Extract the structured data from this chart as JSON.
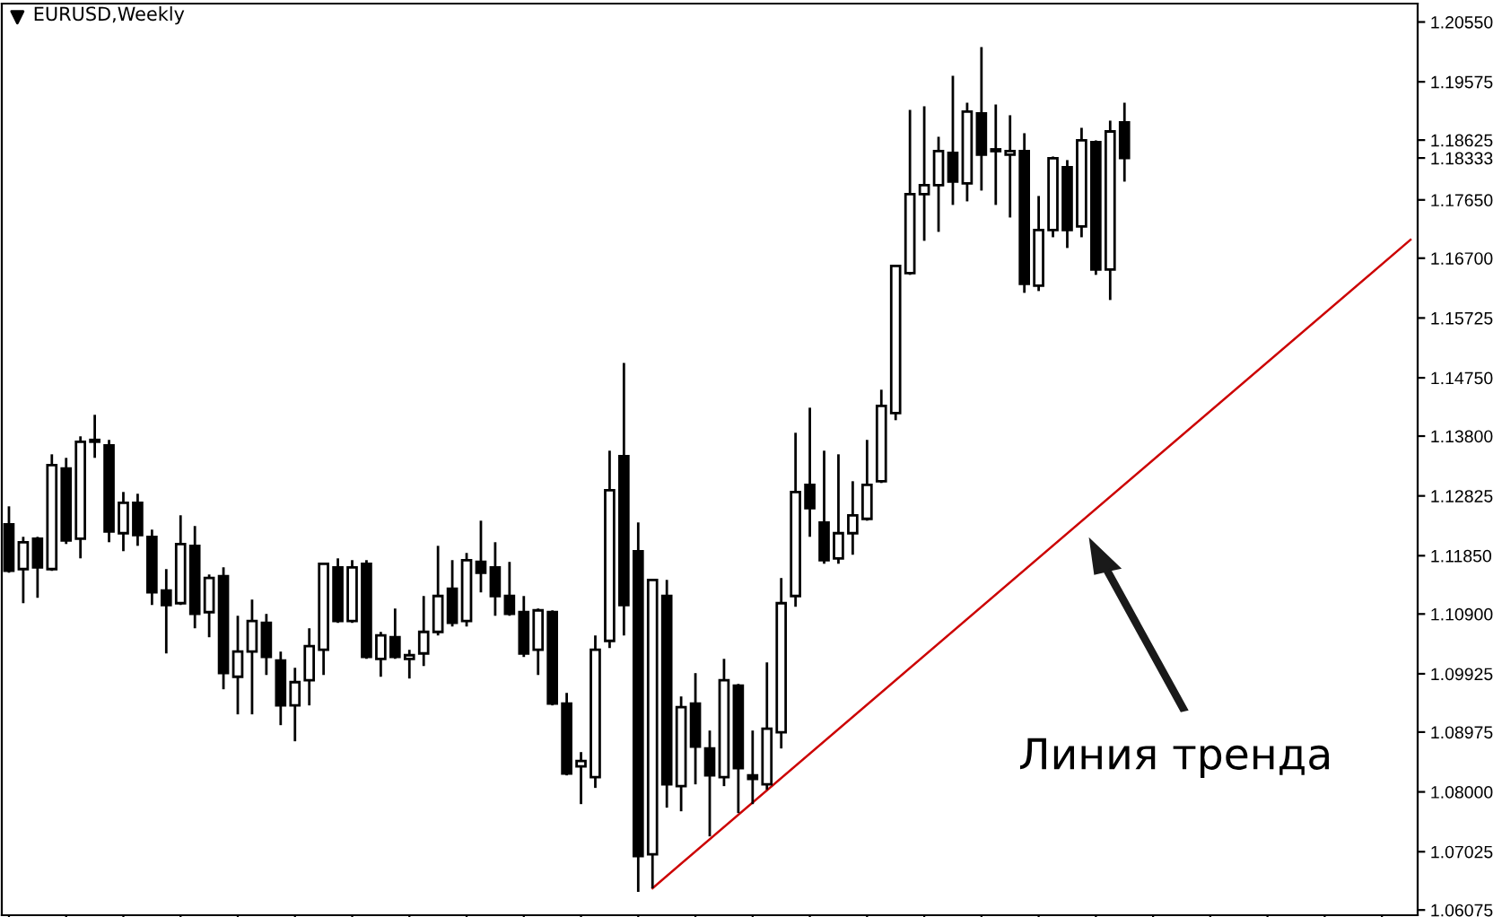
{
  "chart_data": {
    "type": "candlestick",
    "title": "EURUSD,Weekly",
    "color": "#000000",
    "categories": [
      null,
      null,
      null,
      null,
      null,
      null,
      null,
      null,
      null,
      null,
      null,
      null,
      null,
      null,
      null,
      null,
      null,
      null,
      null,
      null,
      null,
      null,
      null,
      null,
      null,
      null,
      null,
      null,
      null,
      null,
      null,
      null,
      null,
      null,
      null,
      null,
      null,
      null,
      null,
      null,
      null,
      null,
      null,
      null,
      null,
      null,
      null,
      null,
      null,
      null,
      null,
      null,
      null,
      null,
      null,
      null,
      null,
      null,
      null,
      null,
      null,
      null,
      null,
      null,
      null,
      null,
      null,
      null,
      null,
      null,
      null,
      null,
      null,
      null,
      null,
      null,
      null,
      null,
      null,
      null,
      null,
      null,
      null,
      null,
      null,
      null,
      null,
      null,
      null,
      null,
      null,
      null,
      null,
      null,
      null,
      null,
      null,
      null,
      null
    ],
    "ohlc": [
      [
        1.12363,
        1.12655,
        1.11573,
        1.11603
      ],
      [
        1.11632,
        1.12158,
        1.11076,
        1.1207
      ],
      [
        1.12129,
        1.12158,
        1.11164,
        1.11661
      ],
      [
        1.11632,
        1.13503,
        1.11603,
        1.13328
      ],
      [
        1.1327,
        1.13445,
        1.12041,
        1.12099
      ],
      [
        1.12129,
        1.13796,
        1.11807,
        1.13708
      ],
      [
        1.13738,
        1.14147,
        1.13445,
        1.13708
      ],
      [
        1.1365,
        1.13738,
        1.1207,
        1.12246
      ],
      [
        1.12217,
        1.12889,
        1.11924,
        1.12714
      ],
      [
        1.12714,
        1.1286,
        1.12011,
        1.12187
      ],
      [
        1.12158,
        1.12275,
        1.11047,
        1.11252
      ],
      [
        1.11281,
        1.11632,
        1.10257,
        1.11047
      ],
      [
        1.11076,
        1.12509,
        1.11047,
        1.12041
      ],
      [
        1.12011,
        1.12334,
        1.10667,
        1.10901
      ],
      [
        1.1093,
        1.11544,
        1.10521,
        1.11486
      ],
      [
        1.11515,
        1.11661,
        1.09673,
        1.09936
      ],
      [
        1.09877,
        1.10871,
        1.09264,
        1.10287
      ],
      [
        1.10287,
        1.11135,
        1.09264,
        1.10784
      ],
      [
        1.10755,
        1.10901,
        1.09906,
        1.10199
      ],
      [
        1.1014,
        1.10287,
        1.09088,
        1.0941
      ],
      [
        1.0941,
        1.10023,
        1.08825,
        1.09789
      ],
      [
        1.09819,
        1.10667,
        1.0941,
        1.10375
      ],
      [
        1.10316,
        1.11719,
        1.09906,
        1.11719
      ],
      [
        1.11661,
        1.11807,
        1.10755,
        1.10784
      ],
      [
        1.10784,
        1.11778,
        1.10755,
        1.11661
      ],
      [
        1.11719,
        1.11778,
        1.10169,
        1.10199
      ],
      [
        1.10169,
        1.10608,
        1.09877,
        1.1055
      ],
      [
        1.10521,
        1.10989,
        1.10169,
        1.10199
      ],
      [
        1.10169,
        1.10316,
        1.09848,
        1.10228
      ],
      [
        1.10257,
        1.11193,
        1.10052,
        1.10608
      ],
      [
        1.10608,
        1.12011,
        1.1055,
        1.11193
      ],
      [
        1.1131,
        1.11778,
        1.10696,
        1.10755
      ],
      [
        1.10784,
        1.11895,
        1.10696,
        1.11778
      ],
      [
        1.11749,
        1.12421,
        1.11252,
        1.11573
      ],
      [
        1.11661,
        1.1207,
        1.10871,
        1.11193
      ],
      [
        1.11193,
        1.11749,
        1.10871,
        1.10901
      ],
      [
        1.1093,
        1.11193,
        1.10199,
        1.10257
      ],
      [
        1.10316,
        1.10989,
        1.09906,
        1.10959
      ],
      [
        1.1093,
        1.10959,
        1.0941,
        1.0944
      ],
      [
        1.0944,
        1.09614,
        1.08269,
        1.08299
      ],
      [
        1.08415,
        1.08649,
        1.07801,
        1.08503
      ],
      [
        1.0824,
        1.1055,
        1.08065,
        1.10316
      ],
      [
        1.10462,
        1.13562,
        1.10345,
        1.12918
      ],
      [
        1.13474,
        1.14994,
        1.1055,
        1.11047
      ],
      [
        1.11924,
        1.12392,
        1.06369,
        1.06953
      ],
      [
        1.06983,
        1.11456,
        1.06427,
        1.11456
      ],
      [
        1.11193,
        1.11456,
        1.07743,
        1.08123
      ],
      [
        1.08094,
        1.09556,
        1.07684,
        1.09381
      ],
      [
        1.0944,
        1.09936,
        1.08123,
        1.08737
      ],
      [
        1.08708,
        1.09,
        1.07275,
        1.08269
      ],
      [
        1.0824,
        1.10169,
        1.08094,
        1.09819
      ],
      [
        1.09731,
        1.0976,
        1.07655,
        1.08386
      ],
      [
        1.08269,
        1.09,
        1.07801,
        1.08211
      ],
      [
        1.08123,
        1.10111,
        1.08035,
        1.0903
      ],
      [
        1.08971,
        1.11486,
        1.08708,
        1.11076
      ],
      [
        1.11193,
        1.13854,
        1.11018,
        1.12889
      ],
      [
        1.13006,
        1.14263,
        1.12158,
        1.12626
      ],
      [
        1.12392,
        1.13562,
        1.11719,
        1.11778
      ],
      [
        1.11807,
        1.13503,
        1.11719,
        1.12217
      ],
      [
        1.12217,
        1.13064,
        1.11866,
        1.12509
      ],
      [
        1.12451,
        1.13738,
        1.12421,
        1.13006
      ],
      [
        1.13064,
        1.14556,
        1.13035,
        1.14293
      ],
      [
        1.14176,
        1.16573,
        1.14059,
        1.16573
      ],
      [
        1.16457,
        1.19117,
        1.16428,
        1.17743
      ],
      [
        1.17743,
        1.19176,
        1.16983,
        1.17889
      ],
      [
        1.17889,
        1.18679,
        1.17129,
        1.18445
      ],
      [
        1.18416,
        1.19673,
        1.17568,
        1.17948
      ],
      [
        1.17919,
        1.19234,
        1.17626,
        1.19088
      ],
      [
        1.19059,
        1.20141,
        1.17802,
        1.18386
      ],
      [
        1.18474,
        1.19205,
        1.17568,
        1.18445
      ],
      [
        1.18386,
        1.1903,
        1.17363,
        1.18445
      ],
      [
        1.18445,
        1.18737,
        1.16135,
        1.16281
      ],
      [
        1.16252,
        1.17714,
        1.16164,
        1.17158
      ],
      [
        1.17158,
        1.18357,
        1.17041,
        1.18328
      ],
      [
        1.18182,
        1.18299,
        1.16866,
        1.17158
      ],
      [
        1.17217,
        1.18825,
        1.17041,
        1.1862
      ],
      [
        1.18591,
        1.1862,
        1.16428,
        1.16515
      ],
      [
        1.16515,
        1.18942,
        1.16018,
        1.18766
      ],
      [
        1.18913,
        1.19234,
        1.17948,
        1.18333
      ],
      null,
      null,
      null,
      null,
      null,
      null,
      null,
      null,
      null,
      null,
      null,
      null,
      null,
      null,
      null,
      null,
      null,
      null,
      null,
      null
    ],
    "series": [
      {
        "type": "line",
        "color": "#cc0000",
        "values": [
          null,
          null,
          null,
          null,
          null,
          null,
          null,
          null,
          null,
          null,
          null,
          null,
          null,
          null,
          null,
          null,
          null,
          null,
          null,
          null,
          null,
          null,
          null,
          null,
          null,
          null,
          null,
          null,
          null,
          null,
          null,
          null,
          null,
          null,
          null,
          null,
          null,
          null,
          null,
          null,
          null,
          null,
          null,
          null,
          null,
          1.0643,
          null,
          null,
          null,
          null,
          null,
          null,
          null,
          null,
          null,
          null,
          null,
          null,
          null,
          null,
          null,
          null,
          null,
          null,
          null,
          null,
          null,
          null,
          null,
          null,
          null,
          null,
          null,
          null,
          null,
          null,
          null,
          null,
          null,
          null,
          null,
          null,
          null,
          null,
          null,
          null,
          null,
          null,
          null,
          null,
          null,
          null,
          null,
          null,
          null,
          null,
          null,
          null,
          1.17
        ]
      }
    ],
    "ylim": [
      1.0599,
      1.2085
    ],
    "yticks": [
      {
        "value": 1.06075,
        "label": "1.06075"
      },
      {
        "value": 1.07025,
        "label": "1.07025"
      },
      {
        "value": 1.08,
        "label": "1.08000"
      },
      {
        "value": 1.08975,
        "label": "1.08975"
      },
      {
        "value": 1.09925,
        "label": "1.09925"
      },
      {
        "value": 1.109,
        "label": "1.10900"
      },
      {
        "value": 1.1185,
        "label": "1.11850"
      },
      {
        "value": 1.12825,
        "label": "1.12825"
      },
      {
        "value": 1.138,
        "label": "1.13800"
      },
      {
        "value": 1.1475,
        "label": "1.14750"
      },
      {
        "value": 1.15725,
        "label": "1.15725"
      },
      {
        "value": 1.167,
        "label": "1.16700"
      },
      {
        "value": 1.1765,
        "label": "1.17650"
      },
      {
        "value": 1.18625,
        "label": "1.18625"
      },
      {
        "value": 1.18333,
        "label": "1.18333"
      },
      {
        "value": 1.19575,
        "label": "1.19575"
      },
      {
        "value": 1.2055,
        "label": "1.20550"
      }
    ],
    "annotations": [
      "Линия тренда"
    ],
    "tick_labels": "y"
  }
}
